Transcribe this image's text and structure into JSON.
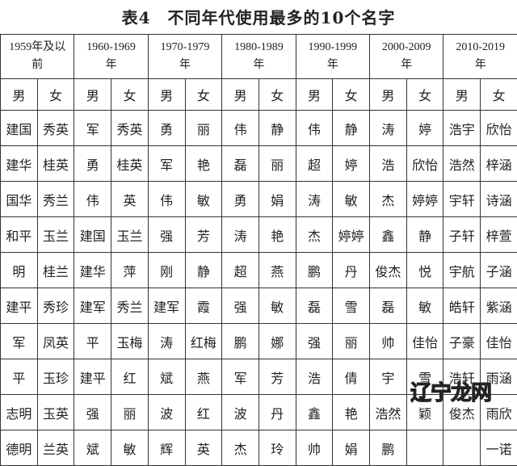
{
  "title": "表4　不同年代使用最多的10个名字",
  "periods": [
    "1959年及以前",
    "1960-1969年",
    "1970-1979年",
    "1980-1989年",
    "1990-1999年",
    "2000-2009年",
    "2010-2019年"
  ],
  "sex_labels": [
    "男",
    "女"
  ],
  "rows": [
    [
      "建国",
      "秀英",
      "军",
      "秀英",
      "勇",
      "丽",
      "伟",
      "静",
      "伟",
      "静",
      "涛",
      "婷",
      "浩宇",
      "欣怡"
    ],
    [
      "建华",
      "桂英",
      "勇",
      "桂英",
      "军",
      "艳",
      "磊",
      "丽",
      "超",
      "婷",
      "浩",
      "欣怡",
      "浩然",
      "梓涵"
    ],
    [
      "国华",
      "秀兰",
      "伟",
      "英",
      "伟",
      "敏",
      "勇",
      "娟",
      "涛",
      "敏",
      "杰",
      "婷婷",
      "宇轩",
      "诗涵"
    ],
    [
      "和平",
      "玉兰",
      "建国",
      "玉兰",
      "强",
      "芳",
      "涛",
      "艳",
      "杰",
      "婷婷",
      "鑫",
      "静",
      "子轩",
      "梓萱"
    ],
    [
      "明",
      "桂兰",
      "建华",
      "萍",
      "刚",
      "静",
      "超",
      "燕",
      "鹏",
      "丹",
      "俊杰",
      "悦",
      "宇航",
      "子涵"
    ],
    [
      "建平",
      "秀珍",
      "建军",
      "秀兰",
      "建军",
      "霞",
      "强",
      "敏",
      "磊",
      "雪",
      "磊",
      "敏",
      "皓轩",
      "紫涵"
    ],
    [
      "军",
      "凤英",
      "平",
      "玉梅",
      "涛",
      "红梅",
      "鹏",
      "娜",
      "强",
      "丽",
      "帅",
      "佳怡",
      "子豪",
      "佳怡"
    ],
    [
      "平",
      "玉珍",
      "建平",
      "红",
      "斌",
      "燕",
      "军",
      "芳",
      "浩",
      "倩",
      "宇",
      "雪",
      "浩轩",
      "雨涵"
    ],
    [
      "志明",
      "玉英",
      "强",
      "丽",
      "波",
      "红",
      "波",
      "丹",
      "鑫",
      "艳",
      "浩然",
      "颖",
      "俊杰",
      "雨欣"
    ],
    [
      "德明",
      "兰英",
      "斌",
      "敏",
      "辉",
      "英",
      "杰",
      "玲",
      "帅",
      "娟",
      "鹏",
      "",
      "",
      "一诺"
    ]
  ],
  "watermark": "辽宁龙网"
}
